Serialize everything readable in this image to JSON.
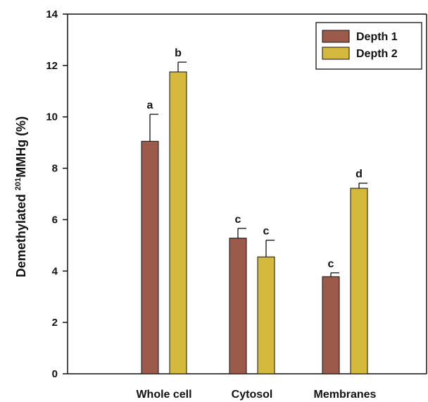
{
  "chart_data": {
    "type": "bar",
    "title": "",
    "xlabel": "",
    "ylabel": {
      "prefix": "Demethylated ",
      "superscript": "201",
      "suffix": "MMHg (%)"
    },
    "ylim": [
      0,
      14
    ],
    "yticks": [
      0,
      2,
      4,
      6,
      8,
      10,
      12,
      14
    ],
    "categories": [
      "Whole cell",
      "Cytosol",
      "Membranes"
    ],
    "series": [
      {
        "name": "Depth 1",
        "color": "#9b5a4a",
        "values": [
          9.05,
          5.28,
          3.78
        ],
        "errors": [
          1.05,
          0.38,
          0.15
        ],
        "letters": [
          "a",
          "c",
          "c"
        ]
      },
      {
        "name": "Depth 2",
        "color": "#d4b93c",
        "values": [
          11.75,
          4.55,
          7.22
        ],
        "errors": [
          0.38,
          0.65,
          0.2
        ],
        "letters": [
          "b",
          "c",
          "d"
        ]
      }
    ],
    "legend_position": "top-right",
    "grid": false
  }
}
